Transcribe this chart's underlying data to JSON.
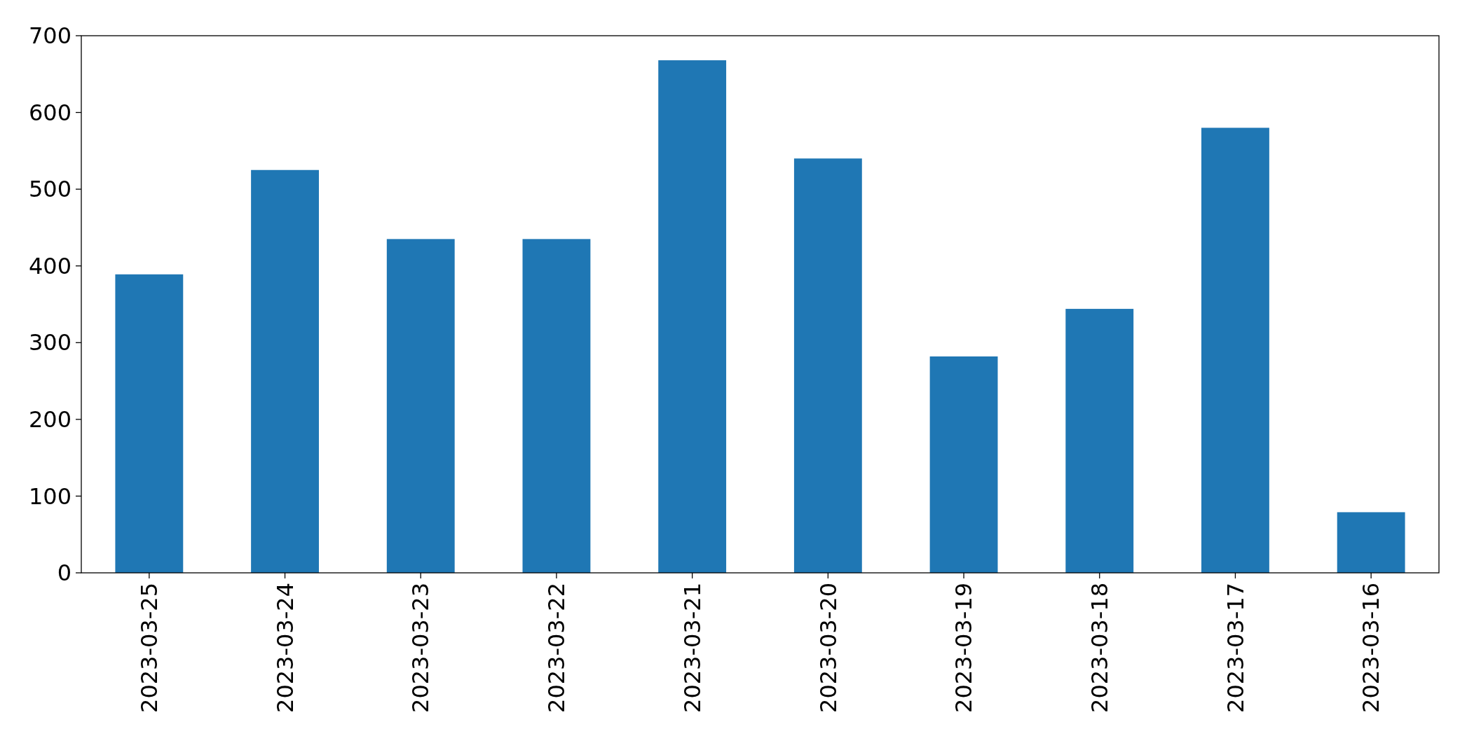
{
  "chart_data": {
    "type": "bar",
    "categories": [
      "2023-03-25",
      "2023-03-24",
      "2023-03-23",
      "2023-03-22",
      "2023-03-21",
      "2023-03-20",
      "2023-03-19",
      "2023-03-18",
      "2023-03-17",
      "2023-03-16"
    ],
    "values": [
      389,
      525,
      435,
      435,
      668,
      540,
      282,
      344,
      580,
      79
    ],
    "color": "#1f77b4",
    "ylim": [
      0,
      700
    ],
    "yticks": [
      0,
      100,
      200,
      300,
      400,
      500,
      600,
      700
    ],
    "grid": false
  }
}
